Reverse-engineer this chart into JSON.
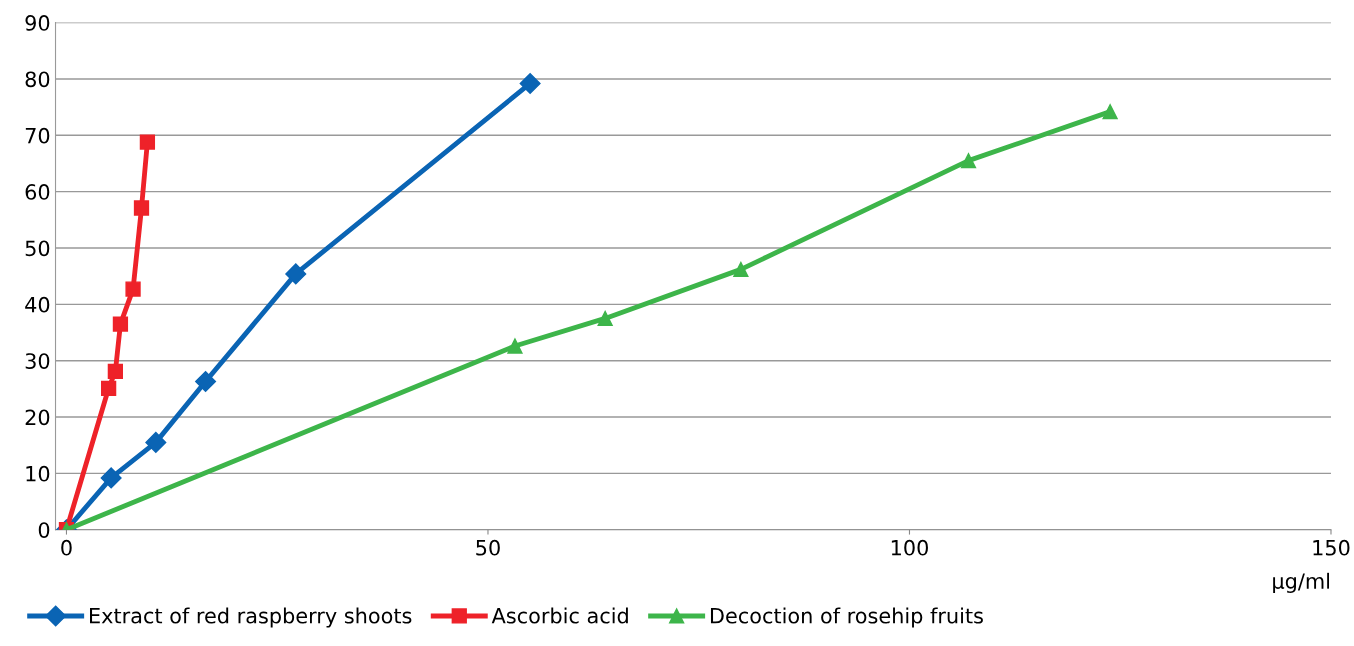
{
  "chart_data": {
    "type": "line",
    "xlabel": "µg/ml",
    "xlim": [
      -1.3,
      150
    ],
    "xticks": [
      0,
      50,
      100,
      150
    ],
    "ylim": [
      0,
      90
    ],
    "yticks": [
      0,
      10,
      20,
      30,
      40,
      50,
      60,
      70,
      80,
      90
    ],
    "grid": "y",
    "legend": "bottom left",
    "line_style": "solid",
    "series": [
      {
        "name": "Extract of red raspberry shoots",
        "color": "#0a64b4",
        "marker": "diamond",
        "x": [
          0,
          5.3,
          10.6,
          16.5,
          27.2,
          55.0
        ],
        "values": [
          0,
          9.2,
          15.5,
          26.3,
          45.4,
          79.2
        ]
      },
      {
        "name": "Ascorbic acid",
        "color": "#ee2229",
        "marker": "square",
        "x": [
          0,
          5.0,
          5.8,
          6.4,
          7.9,
          8.9,
          9.6
        ],
        "values": [
          0,
          25.1,
          28.1,
          36.5,
          42.7,
          57.1,
          68.8
        ]
      },
      {
        "name": "Decoction of rosehip fruits",
        "color": "#3db54a",
        "marker": "triangle",
        "x": [
          0,
          53.2,
          63.9,
          80.0,
          107.0,
          123.8
        ],
        "values": [
          0,
          32.6,
          37.5,
          46.2,
          65.5,
          74.2
        ]
      }
    ]
  }
}
